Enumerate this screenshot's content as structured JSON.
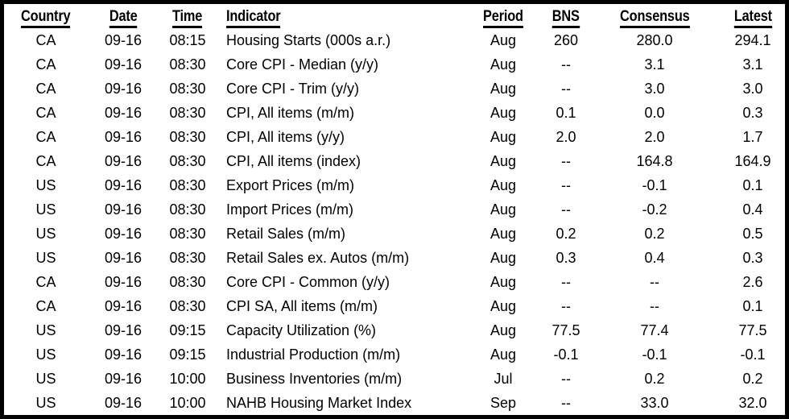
{
  "colors": {
    "text": "#000000",
    "background": "#ffffff",
    "border": "#000000"
  },
  "table": {
    "headers": [
      "Country",
      "Date",
      "Time",
      "Indicator",
      "Period",
      "BNS",
      "Consensus",
      "Latest"
    ],
    "rows": [
      {
        "country": "CA",
        "date": "09-16",
        "time": "08:15",
        "indicator": "Housing Starts (000s a.r.)",
        "period": "Aug",
        "bns": "260",
        "consensus": "280.0",
        "latest": "294.1"
      },
      {
        "country": "CA",
        "date": "09-16",
        "time": "08:30",
        "indicator": "Core CPI - Median (y/y)",
        "period": "Aug",
        "bns": "--",
        "consensus": "3.1",
        "latest": "3.1"
      },
      {
        "country": "CA",
        "date": "09-16",
        "time": "08:30",
        "indicator": "Core CPI - Trim (y/y)",
        "period": "Aug",
        "bns": "--",
        "consensus": "3.0",
        "latest": "3.0"
      },
      {
        "country": "CA",
        "date": "09-16",
        "time": "08:30",
        "indicator": "CPI, All items (m/m)",
        "period": "Aug",
        "bns": "0.1",
        "consensus": "0.0",
        "latest": "0.3"
      },
      {
        "country": "CA",
        "date": "09-16",
        "time": "08:30",
        "indicator": "CPI, All items (y/y)",
        "period": "Aug",
        "bns": "2.0",
        "consensus": "2.0",
        "latest": "1.7"
      },
      {
        "country": "CA",
        "date": "09-16",
        "time": "08:30",
        "indicator": "CPI, All items (index)",
        "period": "Aug",
        "bns": "--",
        "consensus": "164.8",
        "latest": "164.9"
      },
      {
        "country": "US",
        "date": "09-16",
        "time": "08:30",
        "indicator": "Export Prices (m/m)",
        "period": "Aug",
        "bns": "--",
        "consensus": "-0.1",
        "latest": "0.1"
      },
      {
        "country": "US",
        "date": "09-16",
        "time": "08:30",
        "indicator": "Import Prices (m/m)",
        "period": "Aug",
        "bns": "--",
        "consensus": "-0.2",
        "latest": "0.4"
      },
      {
        "country": "US",
        "date": "09-16",
        "time": "08:30",
        "indicator": "Retail Sales (m/m)",
        "period": "Aug",
        "bns": "0.2",
        "consensus": "0.2",
        "latest": "0.5"
      },
      {
        "country": "US",
        "date": "09-16",
        "time": "08:30",
        "indicator": "Retail Sales ex. Autos (m/m)",
        "period": "Aug",
        "bns": "0.3",
        "consensus": "0.4",
        "latest": "0.3"
      },
      {
        "country": "CA",
        "date": "09-16",
        "time": "08:30",
        "indicator": "Core CPI - Common (y/y)",
        "period": "Aug",
        "bns": "--",
        "consensus": "--",
        "latest": "2.6"
      },
      {
        "country": "CA",
        "date": "09-16",
        "time": "08:30",
        "indicator": "CPI SA, All items (m/m)",
        "period": "Aug",
        "bns": "--",
        "consensus": "--",
        "latest": "0.1"
      },
      {
        "country": "US",
        "date": "09-16",
        "time": "09:15",
        "indicator": "Capacity Utilization (%)",
        "period": "Aug",
        "bns": "77.5",
        "consensus": "77.4",
        "latest": "77.5"
      },
      {
        "country": "US",
        "date": "09-16",
        "time": "09:15",
        "indicator": "Industrial Production (m/m)",
        "period": "Aug",
        "bns": "-0.1",
        "consensus": "-0.1",
        "latest": "-0.1"
      },
      {
        "country": "US",
        "date": "09-16",
        "time": "10:00",
        "indicator": "Business Inventories (m/m)",
        "period": "Jul",
        "bns": "--",
        "consensus": "0.2",
        "latest": "0.2"
      },
      {
        "country": "US",
        "date": "09-16",
        "time": "10:00",
        "indicator": "NAHB Housing Market Index",
        "period": "Sep",
        "bns": "--",
        "consensus": "33.0",
        "latest": "32.0"
      }
    ]
  }
}
